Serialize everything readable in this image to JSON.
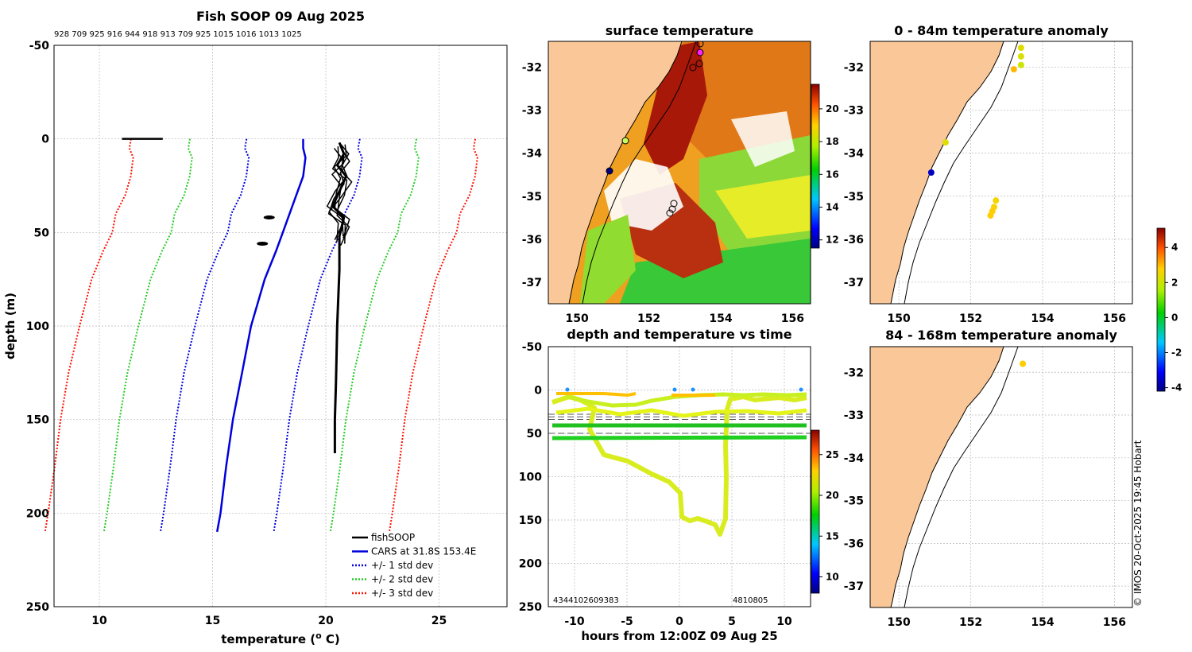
{
  "chart_data": [
    {
      "type": "line",
      "title": "Fish SOOP 09 Aug 2025",
      "header_numbers": "928 709 925 916 944 918 913 709 925 1015 1016 1013 1025",
      "xlabel": "temperature (",
      "xlabel_sup": "o",
      "xlabel_tail": " C)",
      "ylabel": "depth (m)",
      "xlim": [
        8,
        28
      ],
      "ylim": [
        -50,
        250
      ],
      "xticks": [
        "10",
        "15",
        "20",
        "25"
      ],
      "xtick_values": [
        10,
        15,
        20,
        25
      ],
      "yticks": [
        "-50",
        "0",
        "50",
        "100",
        "150",
        "200",
        "250"
      ],
      "ytick_values": [
        -50,
        0,
        50,
        100,
        150,
        200,
        250
      ],
      "cars_depth": [
        0,
        5,
        10,
        20,
        30,
        40,
        50,
        60,
        75,
        100,
        125,
        150,
        175,
        200,
        210
      ],
      "cars_temp": [
        19.0,
        19.0,
        19.1,
        19.0,
        18.7,
        18.4,
        18.1,
        17.8,
        17.3,
        16.7,
        16.3,
        15.9,
        15.6,
        15.35,
        15.2
      ],
      "std_offsets": [
        2.5,
        5.0,
        7.6
      ],
      "fishsoop_surface": [
        [
          11.0,
          0
        ],
        [
          12.8,
          0
        ]
      ],
      "fishsoop_profile": [
        [
          20.6,
          2
        ],
        [
          20.8,
          8
        ],
        [
          20.5,
          14
        ],
        [
          20.9,
          20
        ],
        [
          20.6,
          28
        ],
        [
          20.3,
          36
        ],
        [
          20.8,
          42
        ],
        [
          20.6,
          52
        ],
        [
          20.6,
          70
        ],
        [
          20.5,
          100
        ],
        [
          20.45,
          130
        ],
        [
          20.4,
          150
        ],
        [
          20.4,
          168
        ]
      ],
      "fishsoop_blobs": [
        [
          17.5,
          42
        ],
        [
          17.2,
          56
        ]
      ],
      "legend": [
        {
          "label": "fishSOOP",
          "color": "#000000",
          "style": "solid"
        },
        {
          "label": "CARS at 31.8S 153.4E",
          "color": "#0000dd",
          "style": "solid"
        },
        {
          "label": "+/- 1 std dev",
          "color": "#0000dd",
          "style": "dotted"
        },
        {
          "label": "+/- 2 std dev",
          "color": "#22cc22",
          "style": "dotted"
        },
        {
          "label": "+/- 3 std dev",
          "color": "#ff1100",
          "style": "dotted"
        }
      ]
    },
    {
      "type": "heatmap",
      "title": "surface temperature",
      "xlim": [
        149.2,
        156.5
      ],
      "ylim": [
        -37.5,
        -31.4
      ],
      "xticks": [
        "150",
        "152",
        "154",
        "156"
      ],
      "xtick_values": [
        150,
        152,
        154,
        156
      ],
      "yticks": [
        "-32",
        "-33",
        "-34",
        "-35",
        "-36",
        "-37"
      ],
      "ytick_values": [
        -32,
        -33,
        -34,
        -35,
        -36,
        -37
      ],
      "colorbar_ticks": [
        "12",
        "14",
        "16",
        "18",
        "20"
      ],
      "colorbar_values": [
        12,
        14,
        16,
        18,
        20
      ],
      "colorbar_range": [
        11.5,
        21.5
      ]
    },
    {
      "type": "scatter",
      "title": "depth and temperature vs time",
      "xlabel": "hours from 12:00Z 09 Aug 25",
      "xlim": [
        -12.5,
        12.5
      ],
      "ylim": [
        -50,
        250
      ],
      "xticks": [
        "-10",
        "-5",
        "0",
        "5",
        "10"
      ],
      "xtick_values": [
        -10,
        -5,
        0,
        5,
        10
      ],
      "yticks": [
        "-50",
        "0",
        "50",
        "100",
        "150",
        "200",
        "250"
      ],
      "ytick_values": [
        -50,
        0,
        50,
        100,
        150,
        200,
        250
      ],
      "bottom_labels_left": "4344102609383",
      "bottom_labels_right": "4810805",
      "colorbar_ticks": [
        "10",
        "15",
        "20",
        "25"
      ],
      "colorbar_values": [
        10,
        15,
        20,
        25
      ],
      "colorbar_range": [
        8,
        28
      ],
      "dashed_depths": [
        28,
        31,
        34,
        50
      ]
    },
    {
      "type": "scatter",
      "title": "0 - 84m temperature anomaly",
      "xlim": [
        149.2,
        156.5
      ],
      "ylim": [
        -37.5,
        -31.4
      ],
      "xticks": [
        "150",
        "152",
        "154",
        "156"
      ],
      "xtick_values": [
        150,
        152,
        154,
        156
      ],
      "yticks": [
        "-32",
        "-33",
        "-34",
        "-35",
        "-36",
        "-37"
      ],
      "ytick_values": [
        -32,
        -33,
        -34,
        -35,
        -36,
        -37
      ],
      "points": [
        {
          "lon": 153.4,
          "lat": -31.55,
          "anom": 2.3
        },
        {
          "lon": 153.4,
          "lat": -31.75,
          "anom": 2.2
        },
        {
          "lon": 153.4,
          "lat": -31.95,
          "anom": 2.0
        },
        {
          "lon": 153.2,
          "lat": -32.05,
          "anom": 3.0
        },
        {
          "lon": 151.3,
          "lat": -33.75,
          "anom": 2.3
        },
        {
          "lon": 150.9,
          "lat": -34.45,
          "anom": -3.6
        },
        {
          "lon": 152.7,
          "lat": -35.1,
          "anom": 2.6
        },
        {
          "lon": 152.65,
          "lat": -35.25,
          "anom": 2.7
        },
        {
          "lon": 152.6,
          "lat": -35.35,
          "anom": 2.8
        },
        {
          "lon": 152.55,
          "lat": -35.45,
          "anom": 2.8
        }
      ]
    },
    {
      "type": "scatter",
      "title": "84 - 168m temperature anomaly",
      "xlim": [
        149.2,
        156.5
      ],
      "ylim": [
        -37.5,
        -31.4
      ],
      "xticks": [
        "150",
        "152",
        "154",
        "156"
      ],
      "xtick_values": [
        150,
        152,
        154,
        156
      ],
      "yticks": [
        "-32",
        "-33",
        "-34",
        "-35",
        "-36",
        "-37"
      ],
      "ytick_values": [
        -32,
        -33,
        -34,
        -35,
        -36,
        -37
      ],
      "points": [
        {
          "lon": 153.45,
          "lat": -31.8,
          "anom": 2.8
        }
      ]
    }
  ],
  "anomaly_colorbar": {
    "ticks": [
      "4",
      "2",
      "0",
      "-2",
      "-4"
    ],
    "tick_values": [
      4,
      2,
      0,
      -2,
      -4
    ],
    "range": [
      -4.2,
      5.1
    ]
  },
  "credit": "© IMOS 20-Oct-2025 19:45 Hobart"
}
